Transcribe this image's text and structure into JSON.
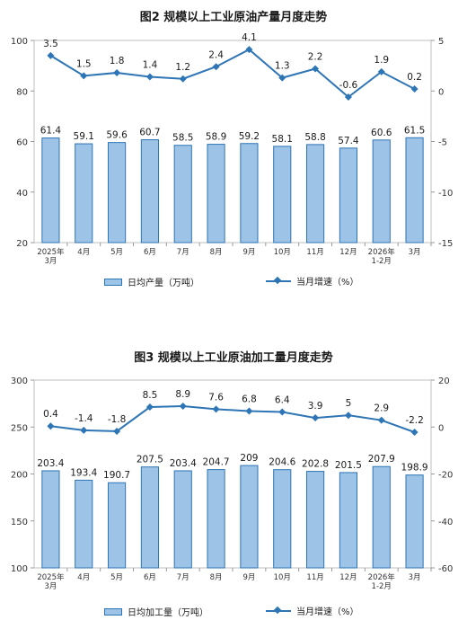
{
  "chart_data": [
    {
      "type": "bar+line",
      "title": "图2  规模以上工业原油产量月度走势",
      "categories": [
        [
          "2025年",
          "3月"
        ],
        [
          "4月"
        ],
        [
          "5月"
        ],
        [
          "6月"
        ],
        [
          "7月"
        ],
        [
          "8月"
        ],
        [
          "9月"
        ],
        [
          "10月"
        ],
        [
          "11月"
        ],
        [
          "12月"
        ],
        [
          "2026年",
          "1-2月"
        ],
        [
          "3月"
        ]
      ],
      "bar_series": {
        "name": "日均产量（万吨）",
        "values": [
          61.4,
          59.1,
          59.6,
          60.7,
          58.5,
          58.9,
          59.2,
          58.1,
          58.8,
          57.4,
          60.6,
          61.5
        ]
      },
      "line_series": {
        "name": "当月增速（%）",
        "values": [
          3.5,
          1.5,
          1.8,
          1.4,
          1.2,
          2.4,
          4.1,
          1.3,
          2.2,
          -0.6,
          1.9,
          0.2
        ]
      },
      "left_axis": {
        "min": 20,
        "max": 100,
        "ticks": [
          20,
          40,
          60,
          80,
          100
        ]
      },
      "right_axis": {
        "min": -15,
        "max": 5,
        "ticks": [
          -15,
          -10,
          -5,
          0,
          5
        ]
      },
      "legend_position": "bottom"
    },
    {
      "type": "bar+line",
      "title": "图3  规模以上工业原油加工量月度走势",
      "categories": [
        [
          "2025年",
          "3月"
        ],
        [
          "4月"
        ],
        [
          "5月"
        ],
        [
          "6月"
        ],
        [
          "7月"
        ],
        [
          "8月"
        ],
        [
          "9月"
        ],
        [
          "10月"
        ],
        [
          "11月"
        ],
        [
          "12月"
        ],
        [
          "2026年",
          "1-2月"
        ],
        [
          "3月"
        ]
      ],
      "bar_series": {
        "name": "日均加工量（万吨）",
        "values": [
          203.4,
          193.4,
          190.7,
          207.5,
          203.4,
          204.7,
          209.0,
          204.6,
          202.8,
          201.5,
          207.9,
          198.9
        ]
      },
      "line_series": {
        "name": "当月增速（%）",
        "values": [
          0.4,
          -1.4,
          -1.8,
          8.5,
          8.9,
          7.6,
          6.8,
          6.4,
          3.9,
          5.0,
          2.9,
          -2.2
        ]
      },
      "left_axis": {
        "min": 100,
        "max": 300,
        "ticks": [
          100,
          150,
          200,
          250,
          300
        ]
      },
      "right_axis": {
        "min": -60,
        "max": 20,
        "ticks": [
          -60,
          -40,
          -20,
          0,
          20
        ]
      },
      "legend_position": "bottom"
    }
  ],
  "colors": {
    "bar_fill": "#9dc3e6",
    "bar_stroke": "#2e75b6",
    "line": "#2e75b6",
    "axis": "#999999"
  }
}
